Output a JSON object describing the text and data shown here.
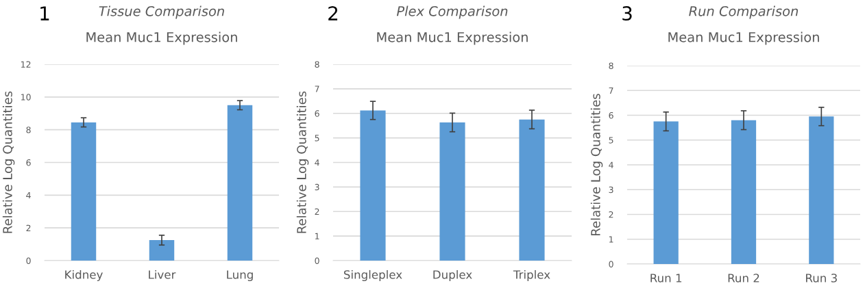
{
  "chart_data": [
    {
      "type": "bar",
      "title": "Tissue Comparison",
      "subtitle": "Mean Muc1 Expression",
      "annotations": [
        "1"
      ],
      "ylabel": "Relative Log Quantities",
      "categories": [
        "Kidney",
        "Liver",
        "Lung"
      ],
      "values": [
        8.45,
        1.25,
        9.5
      ],
      "errors": [
        0.28,
        0.3,
        0.28
      ],
      "color": "#5b9bd5",
      "ylim": [
        0,
        12
      ],
      "yticks": [
        0,
        2,
        4,
        6,
        8,
        10,
        12
      ],
      "grid": "y"
    },
    {
      "type": "bar",
      "title": "Plex Comparison",
      "subtitle": "Mean Muc1 Expression",
      "annotations": [
        "2"
      ],
      "ylabel": "Relative Log Quantities",
      "categories": [
        "Singleplex",
        "Duplex",
        "Triplex"
      ],
      "values": [
        6.12,
        5.63,
        5.75
      ],
      "errors": [
        0.37,
        0.38,
        0.38
      ],
      "color": "#5b9bd5",
      "ylim": [
        0,
        8
      ],
      "yticks": [
        0,
        1,
        2,
        3,
        4,
        5,
        6,
        7,
        8
      ],
      "grid": "y"
    },
    {
      "type": "bar",
      "title": "Run Comparison",
      "subtitle": "Mean Muc1 Expression",
      "annotations": [
        "3"
      ],
      "ylabel": "Relative Log Quantities",
      "categories": [
        "Run 1",
        "Run 2",
        "Run 3"
      ],
      "values": [
        5.75,
        5.8,
        5.95
      ],
      "errors": [
        0.38,
        0.38,
        0.37
      ],
      "color": "#5b9bd5",
      "ylim": [
        0,
        8
      ],
      "yticks": [
        0,
        1,
        2,
        3,
        4,
        5,
        6,
        7,
        8
      ],
      "grid": "y"
    }
  ]
}
